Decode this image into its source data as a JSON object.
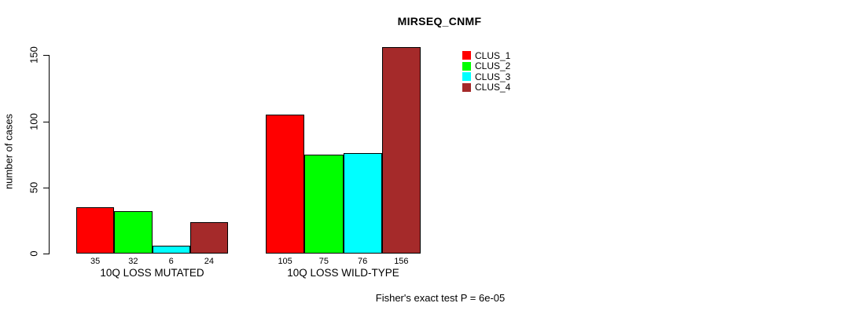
{
  "chart_data": {
    "type": "bar",
    "title": "MIRSEQ_CNMF",
    "ylabel": "number of cases",
    "categories": [
      "10Q LOSS MUTATED",
      "10Q LOSS WILD-TYPE"
    ],
    "series": [
      {
        "name": "CLUS_1",
        "color": "#FF0000",
        "values": [
          35,
          105
        ]
      },
      {
        "name": "CLUS_2",
        "color": "#00FF00",
        "values": [
          32,
          75
        ]
      },
      {
        "name": "CLUS_3",
        "color": "#00FFFF",
        "values": [
          6,
          76
        ]
      },
      {
        "name": "CLUS_4",
        "color": "#A52A2A",
        "values": [
          24,
          156
        ]
      }
    ],
    "yticks": [
      0,
      50,
      100,
      150
    ],
    "ylim": [
      0,
      150
    ],
    "grid": false,
    "legend_position": "topright",
    "bar_value_labels": true,
    "annotation": "Fisher's exact test P = 6e-05"
  }
}
